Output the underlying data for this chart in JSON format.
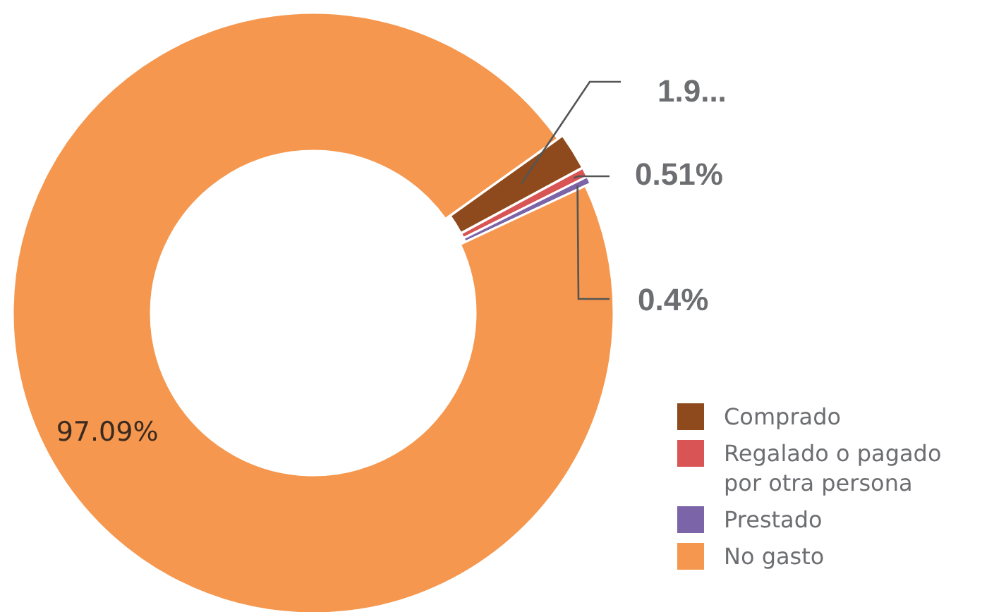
{
  "chart_data": {
    "type": "donut",
    "categories": [
      "Comprado",
      "Regalado o pagado por otra persona",
      "Prestado",
      "No gasto"
    ],
    "values": [
      1.99,
      0.51,
      0.4,
      97.09
    ],
    "colors": [
      "#8e4a1c",
      "#d95454",
      "#7b65a8",
      "#f5974e"
    ],
    "value_labels": [
      "1.9...",
      "0.51%",
      "0.4%",
      "97.09%"
    ],
    "legend": "bottom right"
  }
}
